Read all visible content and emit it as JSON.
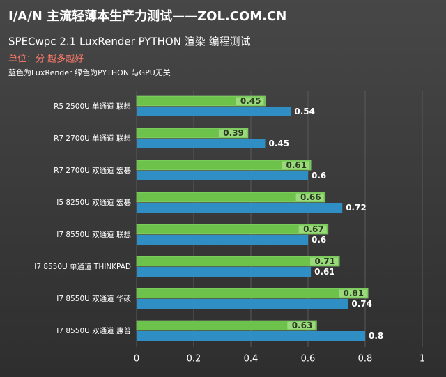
{
  "chart_data": {
    "type": "hbar",
    "title": "I/A/N 主流轻薄本生产力测试——ZOL.COM.CN",
    "subtitle": "SPECwpc 2.1 LuxRender PYTHON 渲染 编程测试",
    "unit_note": "单位：分 越多越好",
    "note": "蓝色为LuxRender  绿色为PYTHON   与GPU无关",
    "categories": [
      "R5 2500U 单通道 联想",
      "R7 2700U 单通道 联想",
      "R7 2700U 双通道 宏碁",
      "I5 8250U 双通道 宏碁",
      "I7 8550U 双通道 联想",
      "I7 8550U 单通道 THINKPAD",
      "I7 8550U 双通道 华硕",
      "I7 8550U 双通道 惠普"
    ],
    "series": [
      {
        "color": "#6cc24a",
        "values": [
          0.45,
          0.39,
          0.61,
          0.66,
          0.67,
          0.71,
          0.81,
          0.63
        ]
      },
      {
        "color": "#2f8fc4",
        "values": [
          0.54,
          0.45,
          0.6,
          0.72,
          0.6,
          0.61,
          0.74,
          0.8
        ]
      }
    ],
    "xlim": [
      0,
      1
    ],
    "xticks": [
      0,
      0.2,
      0.4,
      0.6,
      0.8,
      1
    ],
    "grid": true
  }
}
